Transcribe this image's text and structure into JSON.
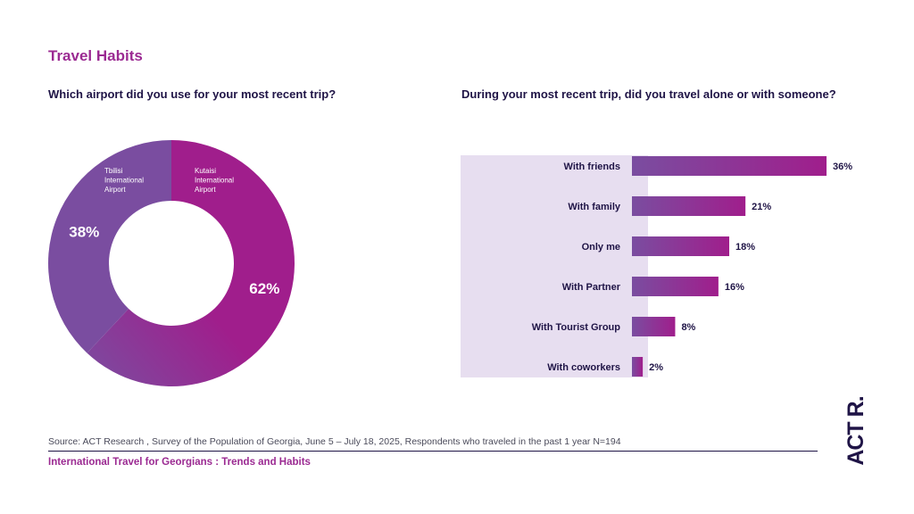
{
  "page": {
    "title": "Travel Habits",
    "source": "Source: ACT Research , Survey of the Population of Georgia, June 5 – July 18, 2025, Respondents who traveled in the past 1 year N=194",
    "footer_title": "International Travel for Georgians : Trends and Habits",
    "logo_text": "ACT R."
  },
  "colors": {
    "accent": "#9b2a92",
    "purple": "#7a4da0",
    "magenta": "#a01e8c",
    "bar_background": "#e7def0",
    "text_dark": "#1f1446"
  },
  "chart_data": [
    {
      "type": "pie",
      "title": "Which airport did you use for your most recent trip?",
      "slices": [
        {
          "label": "Kutaisi International Airport",
          "label_lines": [
            "Kutaisi",
            "International",
            "Airport"
          ],
          "value": 62,
          "value_label": "62%",
          "color": "#a01e8c"
        },
        {
          "label": "Tbilisi International Airport",
          "label_lines": [
            "Tbilisi",
            "International",
            "Airport"
          ],
          "value": 38,
          "value_label": "38%",
          "color": "#7a4da0"
        }
      ]
    },
    {
      "type": "bar",
      "orientation": "horizontal",
      "title": "During your most recent trip, did you travel alone or with someone?",
      "categories": [
        "With friends",
        "With family",
        "Only me",
        "With Partner",
        "With Tourist Group",
        "With coworkers"
      ],
      "values": [
        36,
        21,
        18,
        16,
        8,
        2
      ],
      "value_labels": [
        "36%",
        "21%",
        "18%",
        "16%",
        "8%",
        "2%"
      ],
      "xlim": [
        0,
        36
      ]
    }
  ]
}
